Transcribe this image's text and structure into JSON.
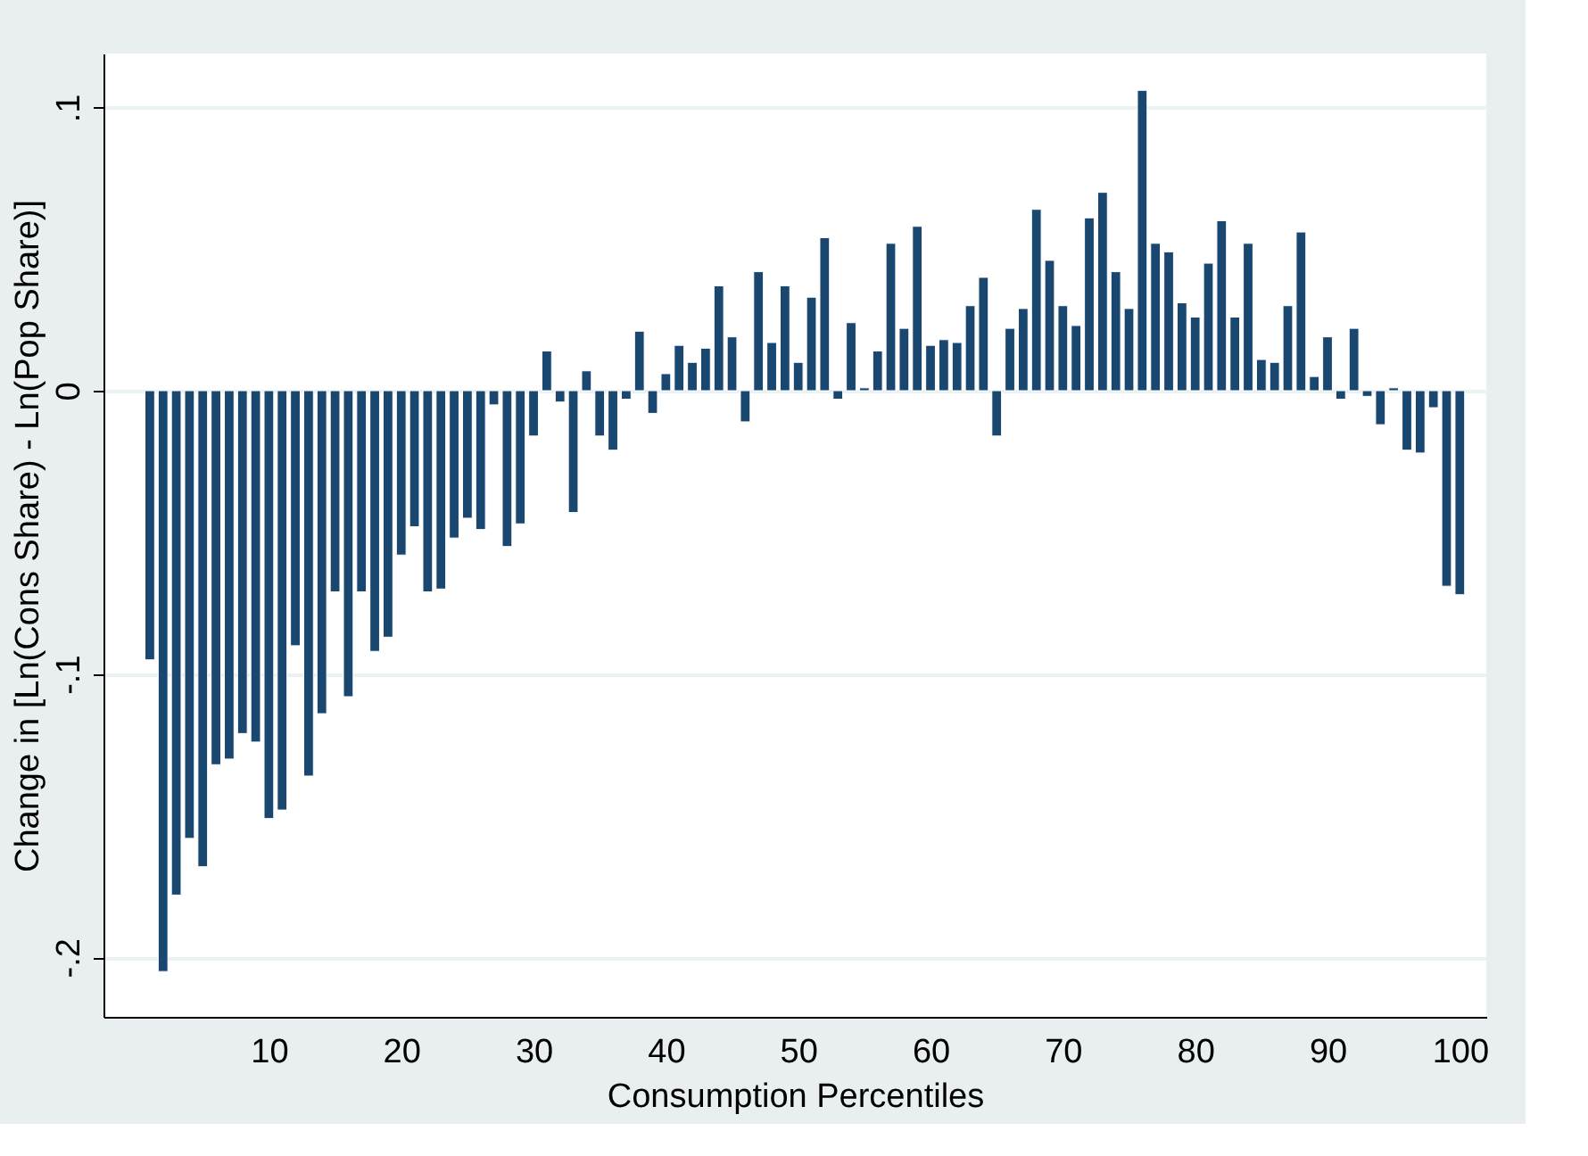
{
  "chart_data": {
    "type": "bar",
    "xlabel": "Consumption Percentiles",
    "ylabel": "Change in [Ln(Cons Share) - Ln(Pop Share)]",
    "x": [
      1,
      2,
      3,
      4,
      5,
      6,
      7,
      8,
      9,
      10,
      11,
      12,
      13,
      14,
      15,
      16,
      17,
      18,
      19,
      20,
      21,
      22,
      23,
      24,
      25,
      26,
      27,
      28,
      29,
      30,
      31,
      32,
      33,
      34,
      35,
      36,
      37,
      38,
      39,
      40,
      41,
      42,
      43,
      44,
      45,
      46,
      47,
      48,
      49,
      50,
      51,
      52,
      53,
      54,
      55,
      56,
      57,
      58,
      59,
      60,
      61,
      62,
      63,
      64,
      65,
      66,
      67,
      68,
      69,
      70,
      71,
      72,
      73,
      74,
      75,
      76,
      77,
      78,
      79,
      80,
      81,
      82,
      83,
      84,
      85,
      86,
      87,
      88,
      89,
      90,
      91,
      92,
      93,
      94,
      95,
      96,
      97,
      98,
      99,
      100
    ],
    "values": [
      -0.095,
      -0.205,
      -0.178,
      -0.158,
      -0.168,
      -0.132,
      -0.13,
      -0.121,
      -0.124,
      -0.151,
      -0.148,
      -0.09,
      -0.136,
      -0.114,
      -0.071,
      -0.108,
      -0.071,
      -0.092,
      -0.087,
      -0.058,
      -0.048,
      -0.071,
      -0.07,
      -0.052,
      -0.045,
      -0.049,
      -0.005,
      -0.055,
      -0.047,
      -0.016,
      0.014,
      -0.004,
      -0.043,
      0.007,
      -0.016,
      -0.021,
      -0.003,
      0.021,
      -0.008,
      0.006,
      0.016,
      0.01,
      0.015,
      0.037,
      0.019,
      -0.011,
      0.042,
      0.017,
      0.037,
      0.01,
      0.033,
      0.054,
      -0.003,
      0.024,
      0.001,
      0.014,
      0.052,
      0.022,
      0.058,
      0.016,
      0.018,
      0.017,
      0.03,
      0.04,
      -0.016,
      0.022,
      0.029,
      0.064,
      0.046,
      0.03,
      0.023,
      0.061,
      0.07,
      0.042,
      0.029,
      0.106,
      0.052,
      0.049,
      0.031,
      0.026,
      0.045,
      0.06,
      0.026,
      0.052,
      0.011,
      0.01,
      0.03,
      0.056,
      0.005,
      0.019,
      -0.003,
      0.022,
      -0.002,
      -0.012,
      0.001,
      -0.021,
      -0.022,
      -0.006,
      -0.069,
      -0.072
    ],
    "color": "#1a476f",
    "xlim": [
      -2.5,
      102
    ],
    "xticks": [
      10,
      20,
      30,
      40,
      50,
      60,
      70,
      80,
      90,
      100
    ],
    "ylim": [
      -0.221,
      0.119
    ],
    "yticks": [
      {
        "value": -0.2,
        "label": "-.2"
      },
      {
        "value": -0.1,
        "label": "-.1"
      },
      {
        "value": 0,
        "label": "0"
      },
      {
        "value": 0.1,
        "label": ".1"
      }
    ],
    "grid": "y"
  }
}
